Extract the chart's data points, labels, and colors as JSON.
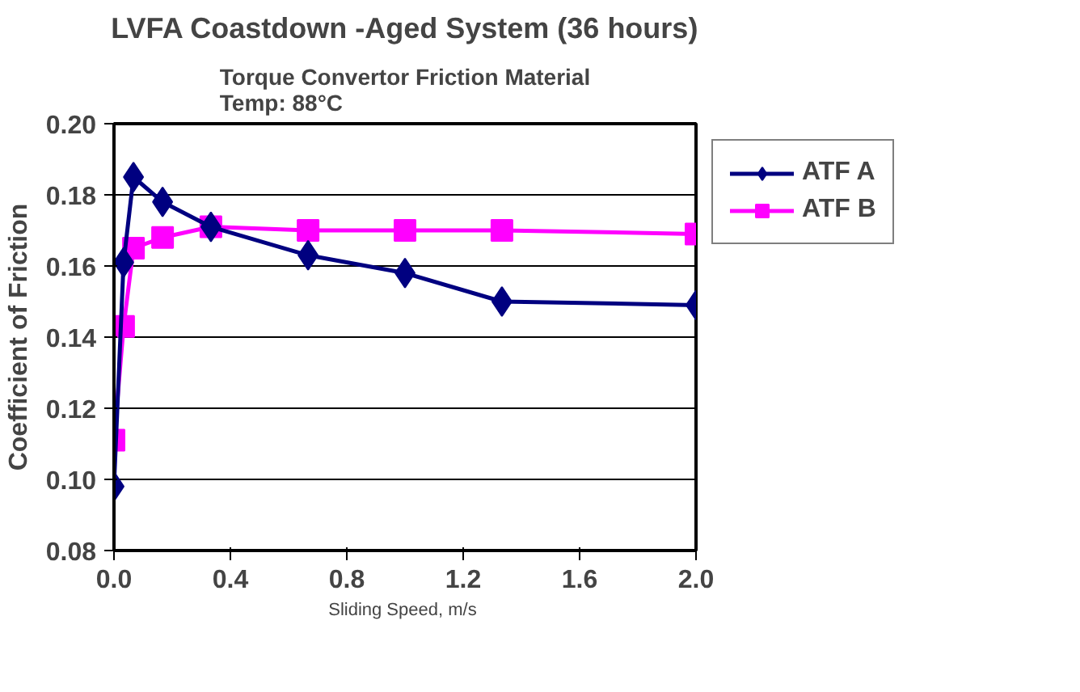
{
  "chart_data": {
    "type": "line",
    "title": "LVFA Coastdown -Aged System (36 hours)",
    "subtitle": "Torque Convertor Friction Material\nTemp:  88°C",
    "xlabel": "Sliding Speed,  m/s",
    "ylabel": "Coefficient of Friction",
    "series": [
      {
        "name": "ATF A",
        "color": "#000080",
        "marker": "diamond",
        "x": [
          0,
          0.033,
          0.067,
          0.167,
          0.333,
          0.667,
          1.0,
          1.333,
          2.0
        ],
        "values": [
          0.098,
          0.161,
          0.185,
          0.178,
          0.171,
          0.163,
          0.158,
          0.15,
          0.149
        ]
      },
      {
        "name": "ATF B",
        "color": "#ff00ff",
        "marker": "square",
        "x": [
          0,
          0.033,
          0.067,
          0.167,
          0.333,
          0.667,
          1.0,
          1.333,
          2.0
        ],
        "values": [
          0.111,
          0.143,
          0.165,
          0.168,
          0.171,
          0.17,
          0.17,
          0.17,
          0.169
        ]
      }
    ],
    "xlim": [
      0,
      2.0
    ],
    "xticks": [
      {
        "value": 0,
        "label": "0.0"
      },
      0.4,
      0.8,
      1.2,
      1.6,
      {
        "value": 2.0,
        "label": "2.0"
      }
    ],
    "ylim": [
      0.08,
      0.2
    ],
    "yticks": [
      0.08,
      {
        "value": 0.1,
        "label": "0.10"
      },
      0.12,
      0.14,
      0.16,
      0.18,
      {
        "value": 0.2,
        "label": "0.20"
      }
    ],
    "grid": "y",
    "legend": "right",
    "line_style": "solid"
  }
}
